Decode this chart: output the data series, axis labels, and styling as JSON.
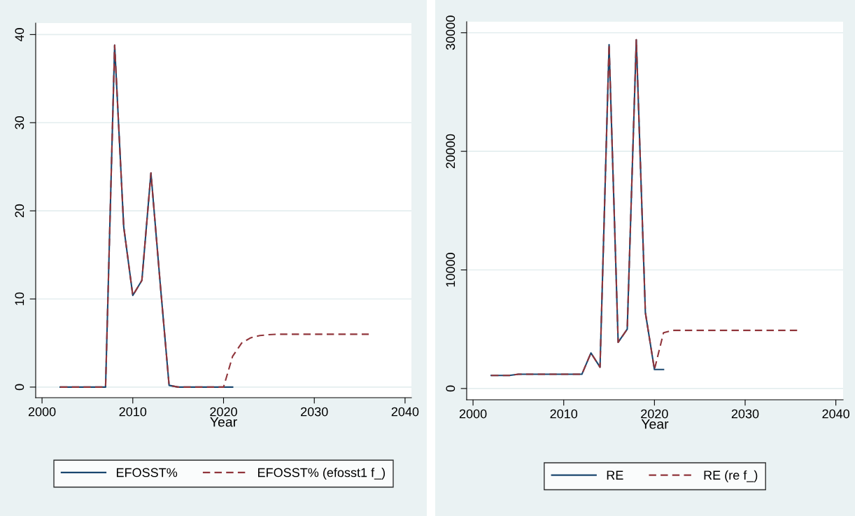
{
  "chart_data": [
    {
      "type": "line",
      "xlabel": "Year",
      "xlim": [
        1999.3,
        2040.7
      ],
      "ylim": [
        -1.2,
        41.3
      ],
      "xticks": [
        2000,
        2010,
        2020,
        2030,
        2040
      ],
      "yticks": [
        0,
        10,
        20,
        30,
        40
      ],
      "grid": "y",
      "legend": "bottom",
      "series": [
        {
          "name": "EFOSST%",
          "color": "#1a476f",
          "line_style": "solid",
          "x": [
            2002,
            2003,
            2004,
            2005,
            2006,
            2007,
            2008,
            2009,
            2010,
            2011,
            2012,
            2013,
            2014,
            2015,
            2016,
            2017,
            2018,
            2019,
            2020,
            2021
          ],
          "values": [
            0,
            0,
            0,
            0,
            0,
            0,
            38.8,
            18.2,
            10.4,
            12.1,
            24.3,
            12,
            0.2,
            0,
            0,
            0,
            0,
            0,
            0,
            0
          ]
        },
        {
          "name": "EFOSST% (efosst1 f_)",
          "color": "#90353b",
          "line_style": "dashed",
          "x": [
            2002,
            2003,
            2004,
            2005,
            2006,
            2007,
            2008,
            2009,
            2010,
            2011,
            2012,
            2013,
            2014,
            2015,
            2016,
            2017,
            2018,
            2019,
            2020,
            2021,
            2022,
            2023,
            2024,
            2025,
            2026,
            2027,
            2028,
            2029,
            2030,
            2031,
            2032,
            2033,
            2034,
            2035,
            2036
          ],
          "values": [
            0,
            0,
            0,
            0,
            0,
            0,
            38.8,
            18.2,
            10.4,
            12.1,
            24.3,
            12,
            0.2,
            0,
            0,
            0,
            0,
            0,
            0,
            3.5,
            5.0,
            5.6,
            5.85,
            5.95,
            6.0,
            6.0,
            6.0,
            6.0,
            6.0,
            6.0,
            6.0,
            6.0,
            6.0,
            6.0,
            6.0
          ]
        }
      ]
    },
    {
      "type": "line",
      "xlabel": "Year",
      "xlim": [
        1999.3,
        2040.8
      ],
      "ylim": [
        -950,
        30930
      ],
      "xticks": [
        2000,
        2010,
        2020,
        2030,
        2040
      ],
      "yticks": [
        0,
        10000,
        20000,
        30000
      ],
      "grid": "y",
      "legend": "bottom",
      "series": [
        {
          "name": "RE",
          "color": "#1a476f",
          "line_style": "solid",
          "x": [
            2002,
            2003,
            2004,
            2005,
            2006,
            2007,
            2008,
            2009,
            2010,
            2011,
            2012,
            2013,
            2014,
            2015,
            2016,
            2017,
            2018,
            2019,
            2020,
            2021
          ],
          "values": [
            1100,
            1100,
            1100,
            1200,
            1200,
            1200,
            1200,
            1200,
            1200,
            1200,
            1200,
            3000,
            1800,
            29000,
            3900,
            5000,
            29400,
            6400,
            1600,
            1600
          ]
        },
        {
          "name": "RE (re f_)",
          "color": "#90353b",
          "line_style": "dashed",
          "x": [
            2002,
            2003,
            2004,
            2005,
            2006,
            2007,
            2008,
            2009,
            2010,
            2011,
            2012,
            2013,
            2014,
            2015,
            2016,
            2017,
            2018,
            2019,
            2020,
            2021,
            2022,
            2023,
            2024,
            2025,
            2026,
            2027,
            2028,
            2029,
            2030,
            2031,
            2032,
            2033,
            2034,
            2035,
            2036
          ],
          "values": [
            1100,
            1100,
            1100,
            1200,
            1200,
            1200,
            1200,
            1200,
            1200,
            1200,
            1200,
            3000,
            1800,
            29000,
            3900,
            5000,
            29400,
            6400,
            1600,
            4700,
            4900,
            4900,
            4900,
            4900,
            4900,
            4900,
            4900,
            4900,
            4900,
            4900,
            4900,
            4900,
            4900,
            4900,
            4900
          ]
        }
      ]
    }
  ]
}
